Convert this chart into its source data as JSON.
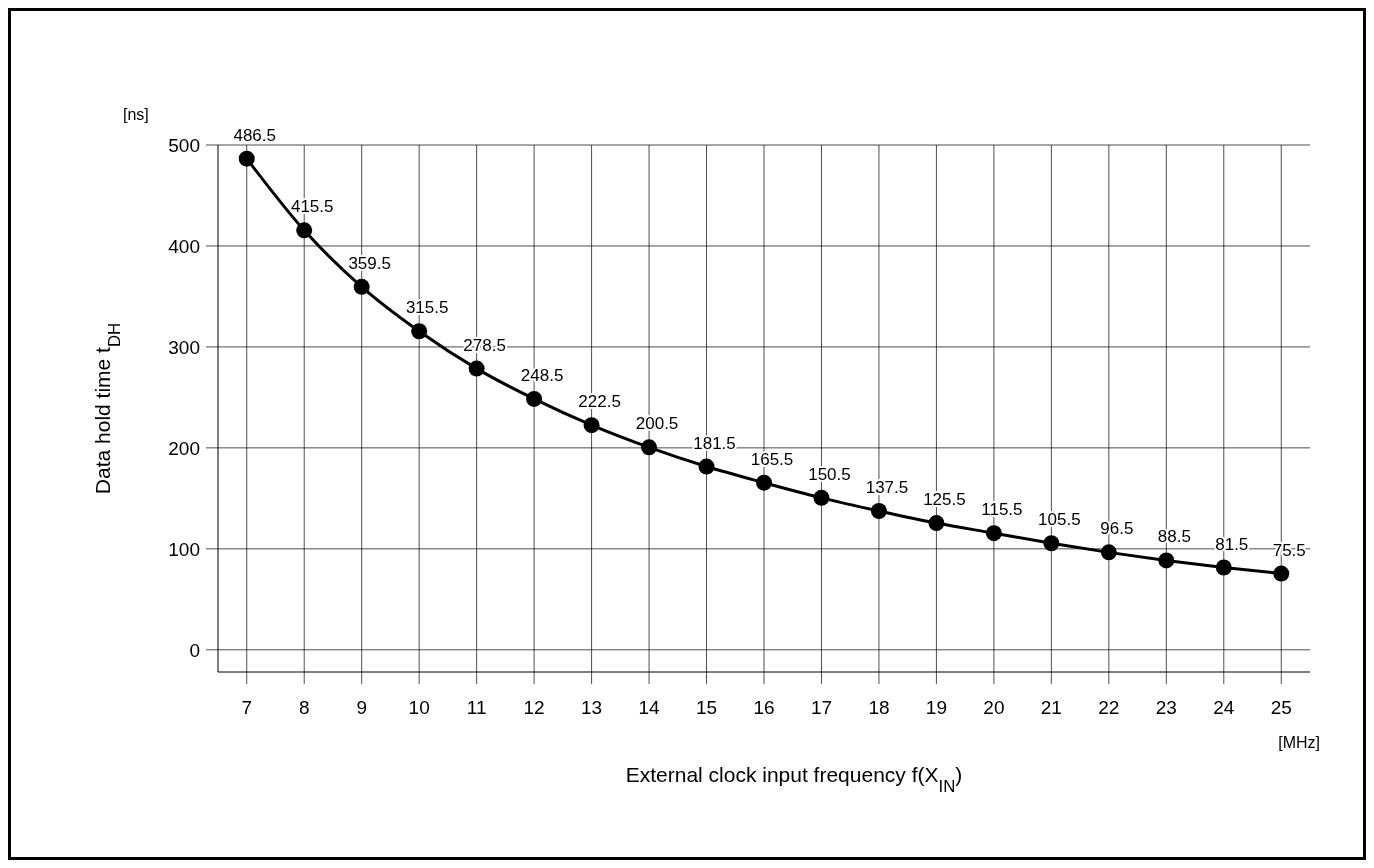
{
  "chart_data": {
    "type": "line",
    "xlabel": "External clock input frequency  f(X$_{IN}$)",
    "ylabel": "Data hold time  t$_{DH}$",
    "annotations": [
      "[ns]",
      "[MHz]"
    ],
    "x": [
      7,
      8,
      9,
      10,
      11,
      12,
      13,
      14,
      15,
      16,
      17,
      18,
      19,
      20,
      21,
      22,
      23,
      24,
      25
    ],
    "series": [
      {
        "color": "#000000",
        "values": [
          486.5,
          415.5,
          359.5,
          315.5,
          278.5,
          248.5,
          222.5,
          200.5,
          181.5,
          165.5,
          150.5,
          137.5,
          125.5,
          115.5,
          105.5,
          96.5,
          88.5,
          81.5,
          75.5
        ]
      }
    ],
    "xlim": [
      6.5,
      25.5
    ],
    "xticks": [
      7,
      8,
      9,
      10,
      11,
      12,
      13,
      14,
      15,
      16,
      17,
      18,
      19,
      20,
      21,
      22,
      23,
      24,
      25
    ],
    "ylim": [
      -22,
      500
    ],
    "yticks": [
      0,
      100,
      200,
      300,
      400,
      500
    ],
    "grid": true,
    "marker": "circle",
    "line_style": "solid",
    "data_labels": true
  }
}
